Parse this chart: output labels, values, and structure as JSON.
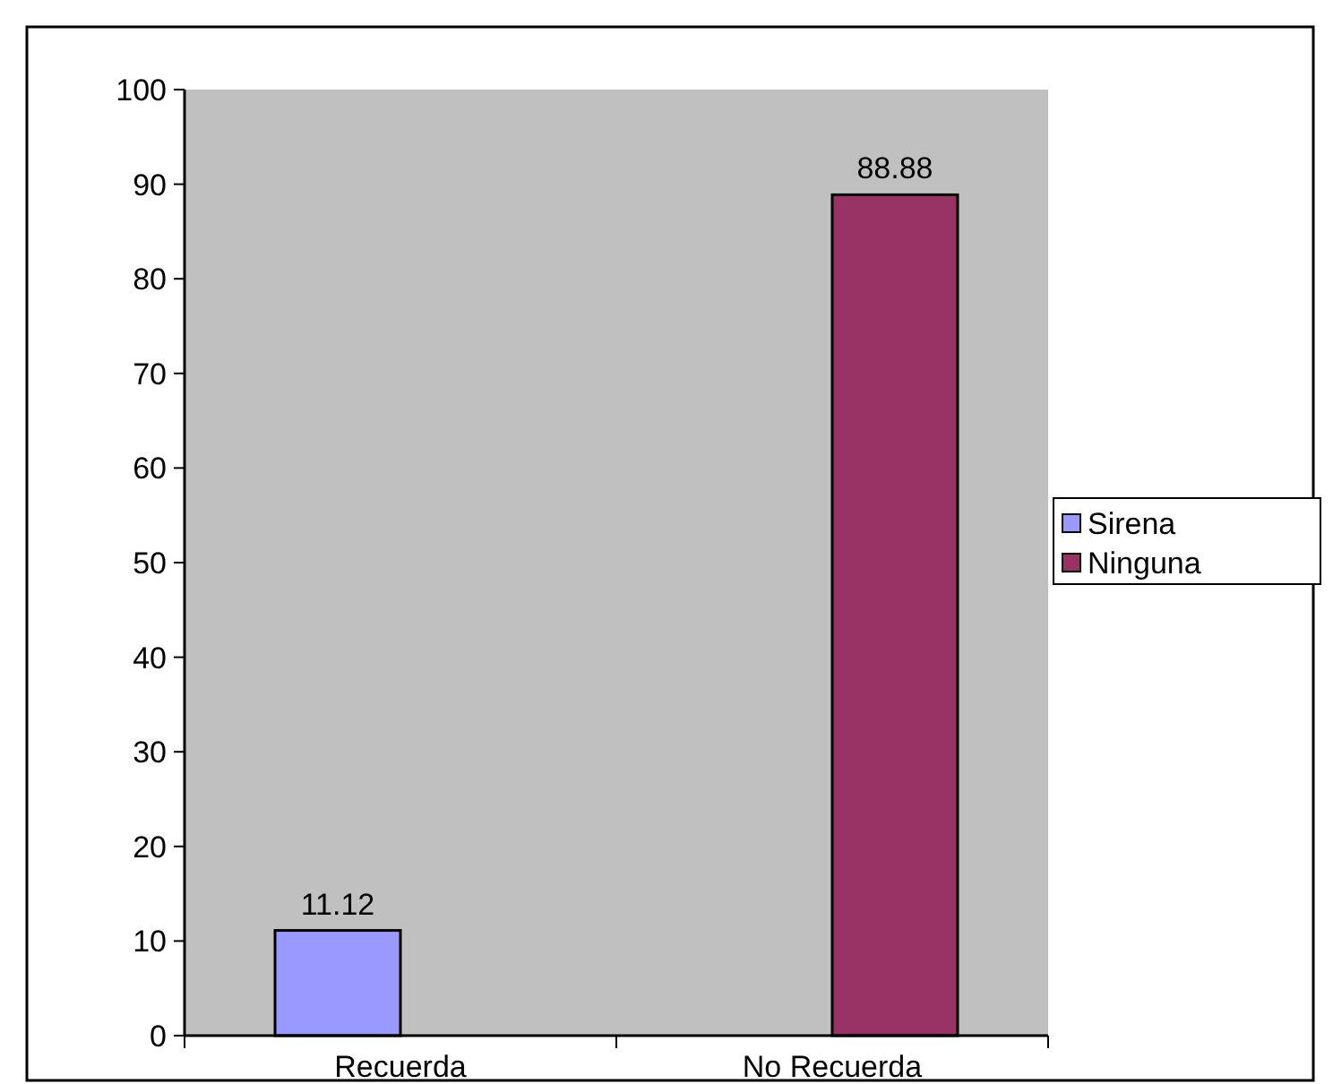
{
  "chart_data": {
    "type": "bar",
    "categories": [
      "Recuerda",
      "No Recuerda"
    ],
    "series": [
      {
        "name": "Sirena",
        "color": "#9999ff",
        "values": [
          11.12,
          null
        ]
      },
      {
        "name": "Ninguna",
        "color": "#993366",
        "values": [
          null,
          88.88
        ]
      }
    ],
    "ylim": [
      0,
      100
    ],
    "yticks": [
      0,
      10,
      20,
      30,
      40,
      50,
      60,
      70,
      80,
      90,
      100
    ],
    "grid": false,
    "legend": "right",
    "data_labels": true
  }
}
